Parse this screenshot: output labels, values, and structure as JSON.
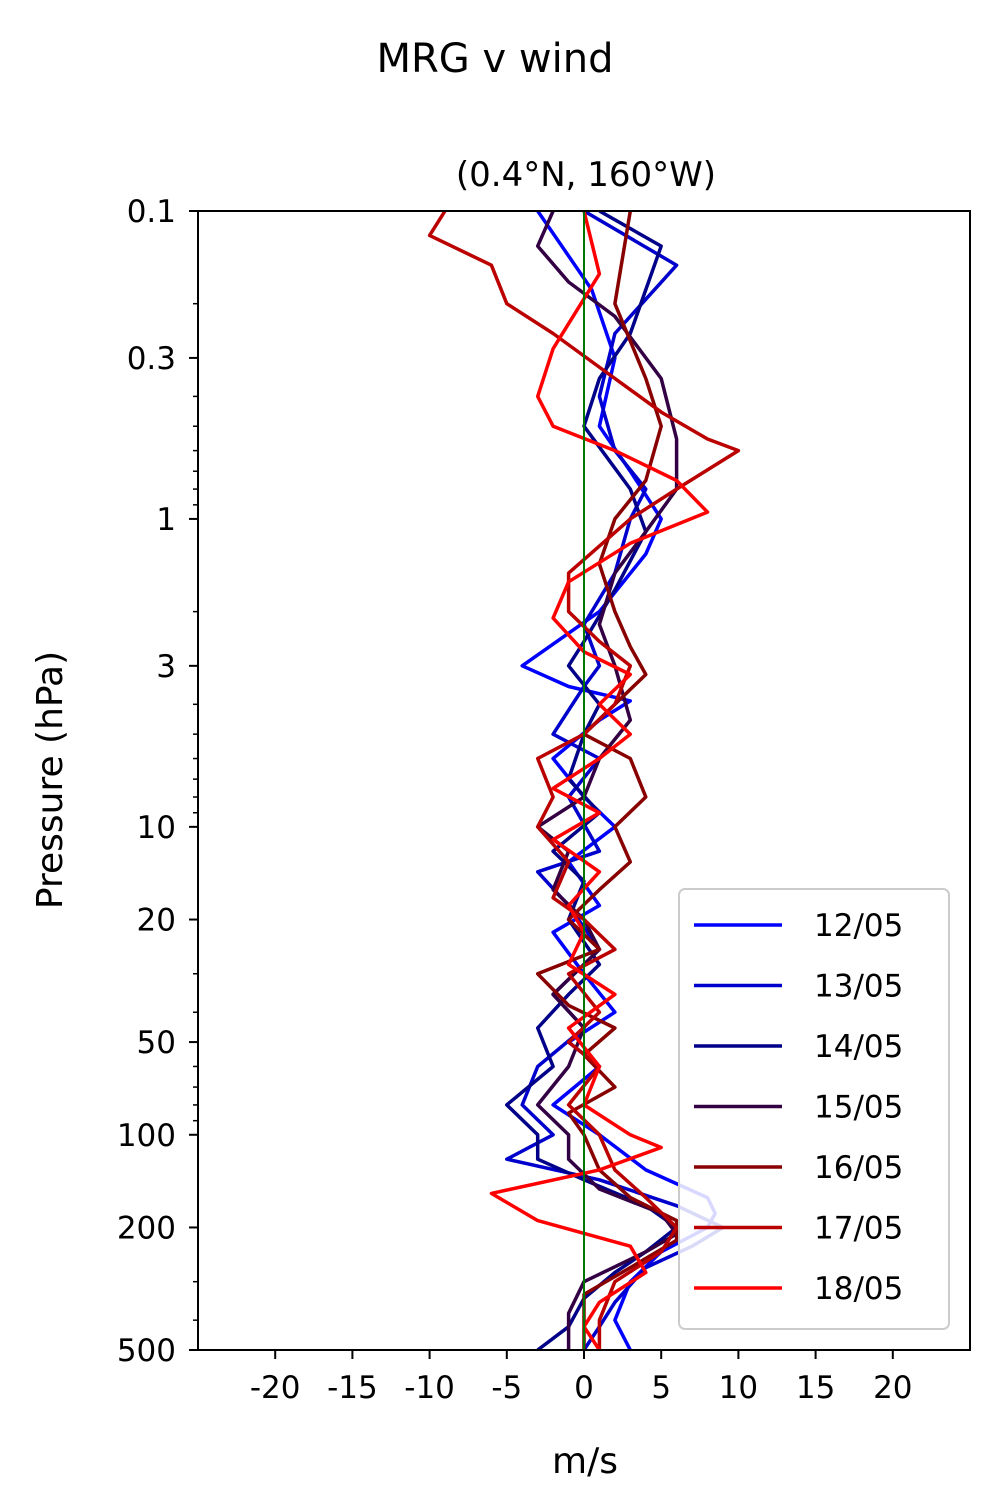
{
  "chart_data": {
    "type": "line",
    "suptitle": "MRG v wind",
    "title": "(0.4°N, 160°W)",
    "xlabel": "m/s",
    "ylabel": "Pressure (hPa)",
    "xlim": [
      -25,
      25
    ],
    "ylim": [
      500,
      0.1
    ],
    "yscale": "log",
    "xticks": [
      -20,
      -15,
      -10,
      -5,
      0,
      5,
      10,
      15,
      20
    ],
    "xtick_labels": [
      "-20",
      "-15",
      "-10",
      "-5",
      "0",
      "5",
      "10",
      "15",
      "20"
    ],
    "yticks": [
      0.1,
      0.3,
      1,
      3,
      10,
      20,
      50,
      100,
      200,
      500
    ],
    "ytick_labels": [
      "0.1",
      "0.3",
      "1",
      "3",
      "10",
      "20",
      "50",
      "100",
      "200",
      "500"
    ],
    "zero_line_color": "#007700",
    "legend_position": "lower-right",
    "series": [
      {
        "name": "12/05",
        "color": "#0000ff",
        "points": [
          [
            -3,
            0.1
          ],
          [
            0.5,
            0.18
          ],
          [
            2,
            0.3
          ],
          [
            1,
            0.5
          ],
          [
            3,
            0.7
          ],
          [
            5,
            1
          ],
          [
            4,
            1.3
          ],
          [
            1,
            2
          ],
          [
            -4,
            3
          ],
          [
            -1,
            3.5
          ],
          [
            3,
            3.9
          ],
          [
            1,
            4.5
          ],
          [
            -2,
            6
          ],
          [
            0,
            8
          ],
          [
            2,
            10
          ],
          [
            -1,
            13
          ],
          [
            1,
            18
          ],
          [
            -2,
            22
          ],
          [
            0,
            30
          ],
          [
            2,
            40
          ],
          [
            -1,
            50
          ],
          [
            1,
            60
          ],
          [
            -2,
            80
          ],
          [
            1,
            100
          ],
          [
            4,
            130
          ],
          [
            8,
            160
          ],
          [
            8.5,
            180
          ],
          [
            8,
            200
          ],
          [
            5,
            240
          ],
          [
            3,
            300
          ],
          [
            2,
            400
          ],
          [
            3,
            500
          ]
        ]
      },
      {
        "name": "13/05",
        "color": "#0000cc",
        "points": [
          [
            0,
            0.1
          ],
          [
            6,
            0.15
          ],
          [
            2,
            0.25
          ],
          [
            1,
            0.4
          ],
          [
            2,
            0.6
          ],
          [
            4,
            0.8
          ],
          [
            3,
            1
          ],
          [
            2,
            1.5
          ],
          [
            0,
            2.2
          ],
          [
            1,
            3
          ],
          [
            0,
            3.5
          ],
          [
            -2,
            5
          ],
          [
            1,
            6
          ],
          [
            -1,
            8
          ],
          [
            1,
            12
          ],
          [
            -3,
            14
          ],
          [
            -1,
            18
          ],
          [
            1,
            25
          ],
          [
            -2,
            35
          ],
          [
            0,
            45
          ],
          [
            -3,
            60
          ],
          [
            -4,
            80
          ],
          [
            -2,
            100
          ],
          [
            -5,
            120
          ],
          [
            1,
            140
          ],
          [
            6,
            170
          ],
          [
            9,
            200
          ],
          [
            7,
            230
          ],
          [
            4,
            270
          ],
          [
            2,
            350
          ],
          [
            1,
            420
          ],
          [
            0,
            500
          ]
        ]
      },
      {
        "name": "14/05",
        "color": "#000088",
        "points": [
          [
            1,
            0.1
          ],
          [
            5,
            0.13
          ],
          [
            3,
            0.25
          ],
          [
            1,
            0.35
          ],
          [
            0,
            0.5
          ],
          [
            3,
            0.8
          ],
          [
            4,
            1.1
          ],
          [
            2,
            1.7
          ],
          [
            0,
            2.5
          ],
          [
            -1,
            3
          ],
          [
            1,
            4
          ],
          [
            0,
            5
          ],
          [
            -1,
            7
          ],
          [
            1,
            9
          ],
          [
            -2,
            12
          ],
          [
            0,
            15
          ],
          [
            -1,
            20
          ],
          [
            1,
            28
          ],
          [
            -1,
            35
          ],
          [
            -3,
            45
          ],
          [
            -2,
            60
          ],
          [
            -5,
            80
          ],
          [
            -3,
            100
          ],
          [
            -3,
            120
          ],
          [
            0,
            140
          ],
          [
            4,
            170
          ],
          [
            6,
            200
          ],
          [
            4,
            240
          ],
          [
            2,
            280
          ],
          [
            0,
            340
          ],
          [
            -1,
            420
          ],
          [
            -3,
            500
          ]
        ]
      },
      {
        "name": "15/05",
        "color": "#330044",
        "points": [
          [
            -2,
            0.1
          ],
          [
            -3,
            0.13
          ],
          [
            -1,
            0.17
          ],
          [
            2,
            0.22
          ],
          [
            5,
            0.35
          ],
          [
            6,
            0.55
          ],
          [
            6,
            0.8
          ],
          [
            4,
            1.1
          ],
          [
            2,
            1.5
          ],
          [
            1,
            2.2
          ],
          [
            2,
            3
          ],
          [
            3,
            4.5
          ],
          [
            1,
            6
          ],
          [
            0,
            8
          ],
          [
            -3,
            10
          ],
          [
            -1,
            12
          ],
          [
            -2,
            16
          ],
          [
            0,
            20
          ],
          [
            1,
            25
          ],
          [
            -2,
            35
          ],
          [
            0,
            45
          ],
          [
            -1,
            60
          ],
          [
            -3,
            80
          ],
          [
            -1,
            100
          ],
          [
            -1,
            120
          ],
          [
            1,
            150
          ],
          [
            5,
            180
          ],
          [
            6,
            210
          ],
          [
            4,
            240
          ],
          [
            0,
            300
          ],
          [
            -1,
            380
          ],
          [
            -1,
            500
          ]
        ]
      },
      {
        "name": "16/05",
        "color": "#880000",
        "points": [
          [
            3,
            0.1
          ],
          [
            2,
            0.2
          ],
          [
            4,
            0.35
          ],
          [
            5,
            0.5
          ],
          [
            4,
            0.75
          ],
          [
            2,
            1
          ],
          [
            1,
            1.4
          ],
          [
            2,
            2
          ],
          [
            3,
            2.6
          ],
          [
            4,
            3.2
          ],
          [
            2,
            4
          ],
          [
            0,
            5
          ],
          [
            3,
            6
          ],
          [
            4,
            8
          ],
          [
            2,
            10
          ],
          [
            3,
            13
          ],
          [
            1,
            16
          ],
          [
            -1,
            20
          ],
          [
            1,
            25
          ],
          [
            -3,
            30
          ],
          [
            -1,
            38
          ],
          [
            2,
            45
          ],
          [
            0,
            55
          ],
          [
            2,
            70
          ],
          [
            -1,
            85
          ],
          [
            0,
            100
          ],
          [
            1,
            130
          ],
          [
            3,
            160
          ],
          [
            6,
            190
          ],
          [
            6,
            220
          ],
          [
            3,
            270
          ],
          [
            0,
            330
          ],
          [
            0,
            500
          ]
        ]
      },
      {
        "name": "17/05",
        "color": "#bb0000",
        "points": [
          [
            -9,
            0.1
          ],
          [
            -10,
            0.12
          ],
          [
            -6,
            0.15
          ],
          [
            -5,
            0.2
          ],
          [
            -2,
            0.25
          ],
          [
            2,
            0.35
          ],
          [
            5,
            0.45
          ],
          [
            8,
            0.55
          ],
          [
            10,
            0.6
          ],
          [
            6,
            0.8
          ],
          [
            3,
            1
          ],
          [
            -1,
            1.5
          ],
          [
            -1,
            2
          ],
          [
            1,
            2.5
          ],
          [
            3,
            3
          ],
          [
            2,
            4
          ],
          [
            0,
            5
          ],
          [
            -3,
            6
          ],
          [
            -2,
            8
          ],
          [
            -3,
            10
          ],
          [
            -1,
            13
          ],
          [
            -2,
            17
          ],
          [
            0,
            20
          ],
          [
            2,
            25
          ],
          [
            -1,
            30
          ],
          [
            1,
            40
          ],
          [
            -1,
            50
          ],
          [
            1,
            60
          ],
          [
            -1,
            80
          ],
          [
            1,
            100
          ],
          [
            2,
            130
          ],
          [
            4,
            160
          ],
          [
            6,
            200
          ],
          [
            5,
            240
          ],
          [
            2,
            300
          ],
          [
            1,
            400
          ],
          [
            1,
            500
          ]
        ]
      },
      {
        "name": "18/05",
        "color": "#ff0000",
        "points": [
          [
            0,
            0.1
          ],
          [
            1,
            0.16
          ],
          [
            -2,
            0.28
          ],
          [
            -3,
            0.4
          ],
          [
            -2,
            0.5
          ],
          [
            2,
            0.6
          ],
          [
            6,
            0.75
          ],
          [
            8,
            0.95
          ],
          [
            3,
            1.2
          ],
          [
            -1,
            1.6
          ],
          [
            -2,
            2.1
          ],
          [
            0,
            2.7
          ],
          [
            3,
            3.2
          ],
          [
            1,
            4
          ],
          [
            3,
            5
          ],
          [
            1,
            6
          ],
          [
            -2,
            7.5
          ],
          [
            1,
            9
          ],
          [
            -2,
            11
          ],
          [
            1,
            14
          ],
          [
            -1,
            18
          ],
          [
            0,
            22
          ],
          [
            -1,
            28
          ],
          [
            2,
            35
          ],
          [
            -1,
            45
          ],
          [
            1,
            60
          ],
          [
            0,
            80
          ],
          [
            3,
            100
          ],
          [
            5,
            110
          ],
          [
            1,
            130
          ],
          [
            -6,
            155
          ],
          [
            -3,
            190
          ],
          [
            3,
            230
          ],
          [
            4,
            280
          ],
          [
            1,
            350
          ],
          [
            0,
            420
          ],
          [
            1,
            500
          ]
        ]
      }
    ]
  }
}
